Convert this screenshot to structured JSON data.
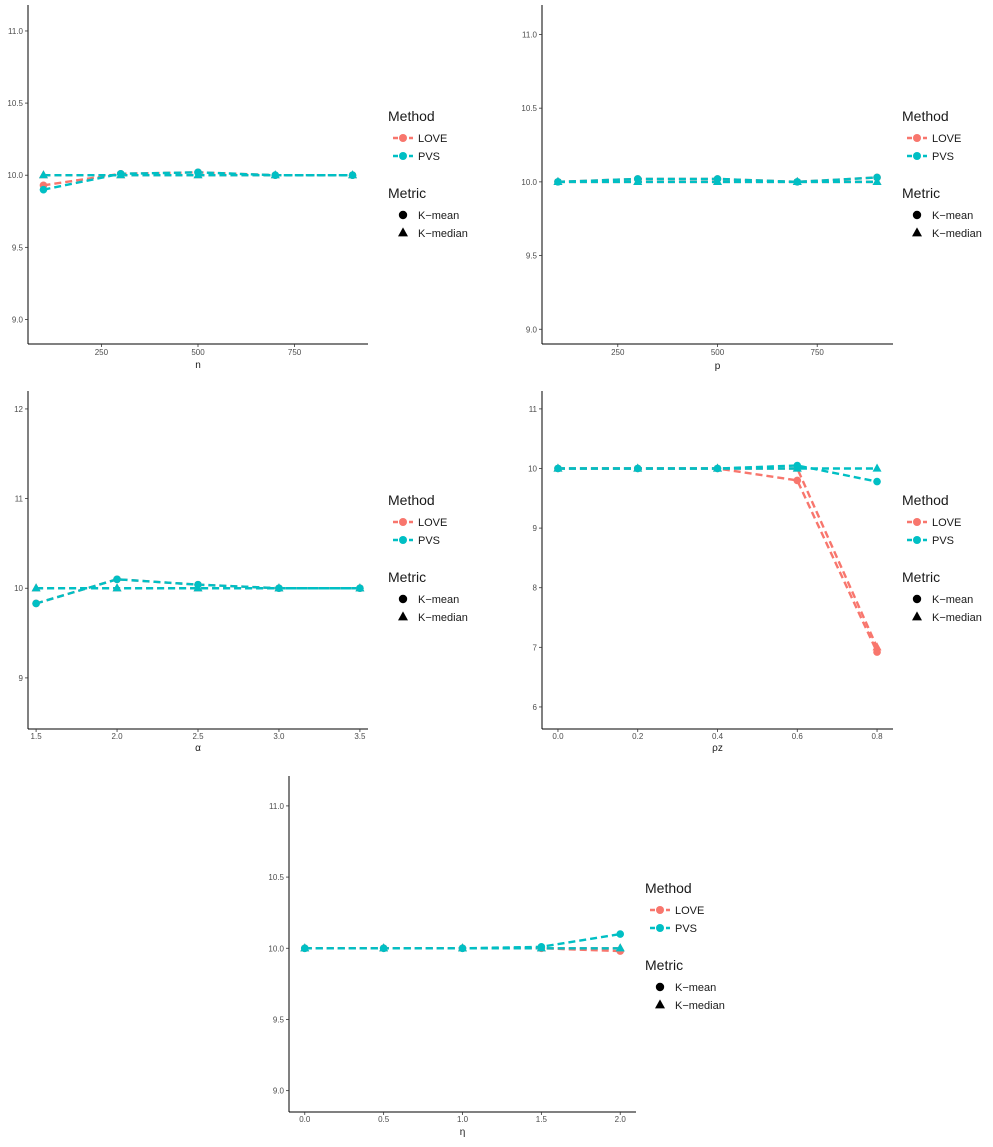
{
  "colors": {
    "LOVE": "#F8766D",
    "PVS": "#00BFC4",
    "axis": "#000000"
  },
  "legend": {
    "method_title": "Method",
    "method_items": [
      "LOVE",
      "PVS"
    ],
    "metric_title": "Metric",
    "metric_items": [
      "K−mean",
      "K−median"
    ]
  },
  "chart_data": [
    {
      "type": "line",
      "xlabel": "n",
      "x": [
        100,
        300,
        500,
        700,
        900
      ],
      "xticks": [
        250,
        500,
        750
      ],
      "xtick_labels": [
        "250",
        "500",
        "750"
      ],
      "yticks": [
        9.0,
        9.5,
        10.0,
        10.5,
        11.0
      ],
      "ytick_labels": [
        "9.0",
        "9.5",
        "10.0",
        "10.5",
        "11.0"
      ],
      "ylim": [
        8.83,
        11.18
      ],
      "series": [
        {
          "name": "LOVE",
          "metric": "K−mean",
          "values": [
            9.93,
            10.01,
            10.02,
            10.0,
            10.0
          ]
        },
        {
          "name": "LOVE",
          "metric": "K−median",
          "values": [
            10.0,
            10.0,
            10.0,
            10.0,
            10.0
          ]
        },
        {
          "name": "PVS",
          "metric": "K−mean",
          "values": [
            9.9,
            10.01,
            10.02,
            10.0,
            10.0
          ]
        },
        {
          "name": "PVS",
          "metric": "K−median",
          "values": [
            10.0,
            10.0,
            10.0,
            10.0,
            10.0
          ]
        }
      ]
    },
    {
      "type": "line",
      "xlabel": "p",
      "x": [
        100,
        300,
        500,
        700,
        900
      ],
      "xticks": [
        250,
        500,
        750
      ],
      "xtick_labels": [
        "250",
        "500",
        "750"
      ],
      "yticks": [
        9.0,
        9.5,
        10.0,
        10.5,
        11.0
      ],
      "ytick_labels": [
        "9.0",
        "9.5",
        "10.0",
        "10.5",
        "11.0"
      ],
      "ylim": [
        8.9,
        11.2
      ],
      "series": [
        {
          "name": "LOVE",
          "metric": "K−mean",
          "values": [
            10.0,
            10.02,
            10.02,
            10.0,
            10.03
          ]
        },
        {
          "name": "LOVE",
          "metric": "K−median",
          "values": [
            10.0,
            10.0,
            10.0,
            10.0,
            10.0
          ]
        },
        {
          "name": "PVS",
          "metric": "K−mean",
          "values": [
            10.0,
            10.02,
            10.02,
            10.0,
            10.03
          ]
        },
        {
          "name": "PVS",
          "metric": "K−median",
          "values": [
            10.0,
            10.0,
            10.0,
            10.0,
            10.0
          ]
        }
      ]
    },
    {
      "type": "line",
      "xlabel": "α",
      "x": [
        1.5,
        2.0,
        2.5,
        3.0,
        3.5
      ],
      "xticks": [
        1.5,
        2.0,
        2.5,
        3.0,
        3.5
      ],
      "xtick_labels": [
        "1.5",
        "2.0",
        "2.5",
        "3.0",
        "3.5"
      ],
      "yticks": [
        9,
        10,
        11,
        12
      ],
      "ytick_labels": [
        "9",
        "10",
        "11",
        "12"
      ],
      "ylim": [
        8.43,
        12.2
      ],
      "series": [
        {
          "name": "LOVE",
          "metric": "K−mean",
          "values": [
            9.83,
            10.1,
            10.04,
            10.0,
            10.0
          ]
        },
        {
          "name": "LOVE",
          "metric": "K−median",
          "values": [
            10.0,
            10.0,
            10.0,
            10.0,
            10.0
          ]
        },
        {
          "name": "PVS",
          "metric": "K−mean",
          "values": [
            9.83,
            10.1,
            10.04,
            10.0,
            10.0
          ]
        },
        {
          "name": "PVS",
          "metric": "K−median",
          "values": [
            10.0,
            10.0,
            10.0,
            10.0,
            10.0
          ]
        }
      ]
    },
    {
      "type": "line",
      "xlabel": "ρz",
      "x": [
        0.0,
        0.2,
        0.4,
        0.6,
        0.8
      ],
      "xticks": [
        0.0,
        0.2,
        0.4,
        0.6,
        0.8
      ],
      "xtick_labels": [
        "0.0",
        "0.2",
        "0.4",
        "0.6",
        "0.8"
      ],
      "yticks": [
        6,
        7,
        8,
        9,
        10,
        11
      ],
      "ytick_labels": [
        "6",
        "7",
        "8",
        "9",
        "10",
        "11"
      ],
      "ylim": [
        5.63,
        11.3
      ],
      "series": [
        {
          "name": "LOVE",
          "metric": "K−mean",
          "values": [
            10.0,
            10.0,
            10.0,
            9.8,
            6.92
          ]
        },
        {
          "name": "LOVE",
          "metric": "K−median",
          "values": [
            10.0,
            10.0,
            10.0,
            10.0,
            7.0
          ]
        },
        {
          "name": "PVS",
          "metric": "K−mean",
          "values": [
            10.0,
            10.0,
            10.0,
            10.05,
            9.78
          ]
        },
        {
          "name": "PVS",
          "metric": "K−median",
          "values": [
            10.0,
            10.0,
            10.0,
            10.0,
            10.0
          ]
        }
      ]
    },
    {
      "type": "line",
      "xlabel": "η",
      "x": [
        0.0,
        0.5,
        1.0,
        1.5,
        2.0
      ],
      "xticks": [
        0.0,
        0.5,
        1.0,
        1.5,
        2.0
      ],
      "xtick_labels": [
        "0.0",
        "0.5",
        "1.0",
        "1.5",
        "2.0"
      ],
      "yticks": [
        9.0,
        9.5,
        10.0,
        10.5,
        11.0
      ],
      "ytick_labels": [
        "9.0",
        "9.5",
        "10.0",
        "10.5",
        "11.0"
      ],
      "ylim": [
        8.85,
        11.21
      ],
      "series": [
        {
          "name": "LOVE",
          "metric": "K−mean",
          "values": [
            10.0,
            10.0,
            10.0,
            10.0,
            9.98
          ]
        },
        {
          "name": "LOVE",
          "metric": "K−median",
          "values": [
            10.0,
            10.0,
            10.0,
            10.0,
            10.0
          ]
        },
        {
          "name": "PVS",
          "metric": "K−mean",
          "values": [
            10.0,
            10.0,
            10.0,
            10.01,
            10.1
          ]
        },
        {
          "name": "PVS",
          "metric": "K−median",
          "values": [
            10.0,
            10.0,
            10.0,
            10.0,
            10.0
          ]
        }
      ]
    }
  ]
}
